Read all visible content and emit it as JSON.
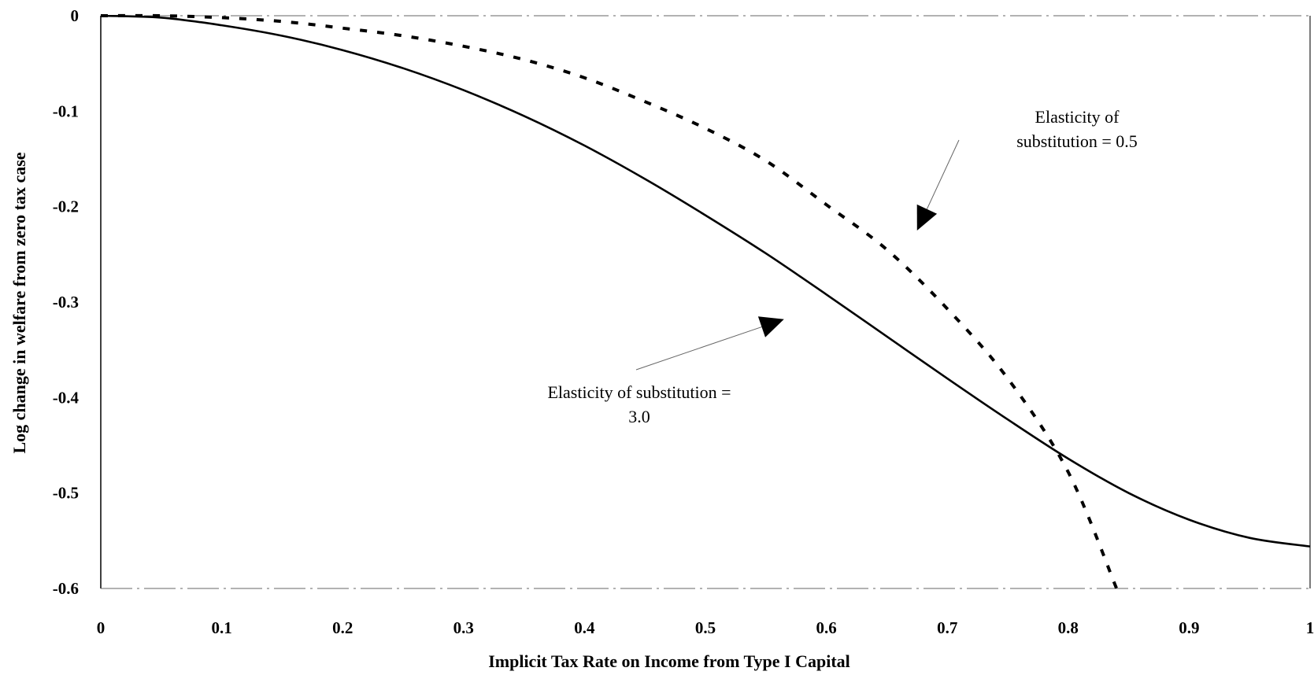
{
  "chart_data": {
    "type": "line",
    "title": "",
    "xlabel": "Implicit Tax Rate on Income from Type I Capital",
    "ylabel": "Log change in welfare from zero tax case",
    "xlim": [
      0,
      1
    ],
    "ylim": [
      -0.6,
      0
    ],
    "x_ticks": [
      "0",
      "0.1",
      "0.2",
      "0.3",
      "0.4",
      "0.5",
      "0.6",
      "0.7",
      "0.8",
      "0.9",
      "1"
    ],
    "y_ticks": [
      "0",
      "-0.1",
      "-0.2",
      "-0.3",
      "-0.4",
      "-0.5",
      "-0.6"
    ],
    "grid": false,
    "legend": "none (series identified by in-plot annotations)",
    "series": [
      {
        "name": "Elasticity of substitution = 3.0",
        "style": "solid",
        "x": [
          0,
          0.05,
          0.1,
          0.15,
          0.2,
          0.25,
          0.3,
          0.35,
          0.4,
          0.45,
          0.5,
          0.55,
          0.6,
          0.65,
          0.7,
          0.75,
          0.8,
          0.85,
          0.9,
          0.95,
          1.0
        ],
        "y": [
          0,
          -0.002,
          -0.01,
          -0.021,
          -0.036,
          -0.055,
          -0.078,
          -0.105,
          -0.136,
          -0.171,
          -0.209,
          -0.249,
          -0.292,
          -0.336,
          -0.38,
          -0.423,
          -0.464,
          -0.5,
          -0.528,
          -0.547,
          -0.556
        ]
      },
      {
        "name": "Elasticity of substitution = 0.5",
        "style": "dashed",
        "x": [
          0,
          0.05,
          0.1,
          0.15,
          0.2,
          0.25,
          0.3,
          0.35,
          0.4,
          0.45,
          0.5,
          0.55,
          0.6,
          0.65,
          0.7,
          0.75,
          0.8,
          0.84
        ],
        "y": [
          0,
          0,
          -0.002,
          -0.006,
          -0.013,
          -0.021,
          -0.032,
          -0.046,
          -0.065,
          -0.09,
          -0.118,
          -0.152,
          -0.198,
          -0.245,
          -0.307,
          -0.38,
          -0.478,
          -0.6
        ]
      }
    ],
    "annotations": [
      {
        "lines": [
          "Elasticity of",
          "substitution = 0.5"
        ],
        "series_index": 1,
        "arrow_to": [
          0.675,
          -0.225
        ]
      },
      {
        "lines": [
          "Elasticity of substitution =",
          "3.0"
        ],
        "series_index": 0,
        "arrow_to": [
          0.565,
          -0.318
        ]
      }
    ]
  }
}
